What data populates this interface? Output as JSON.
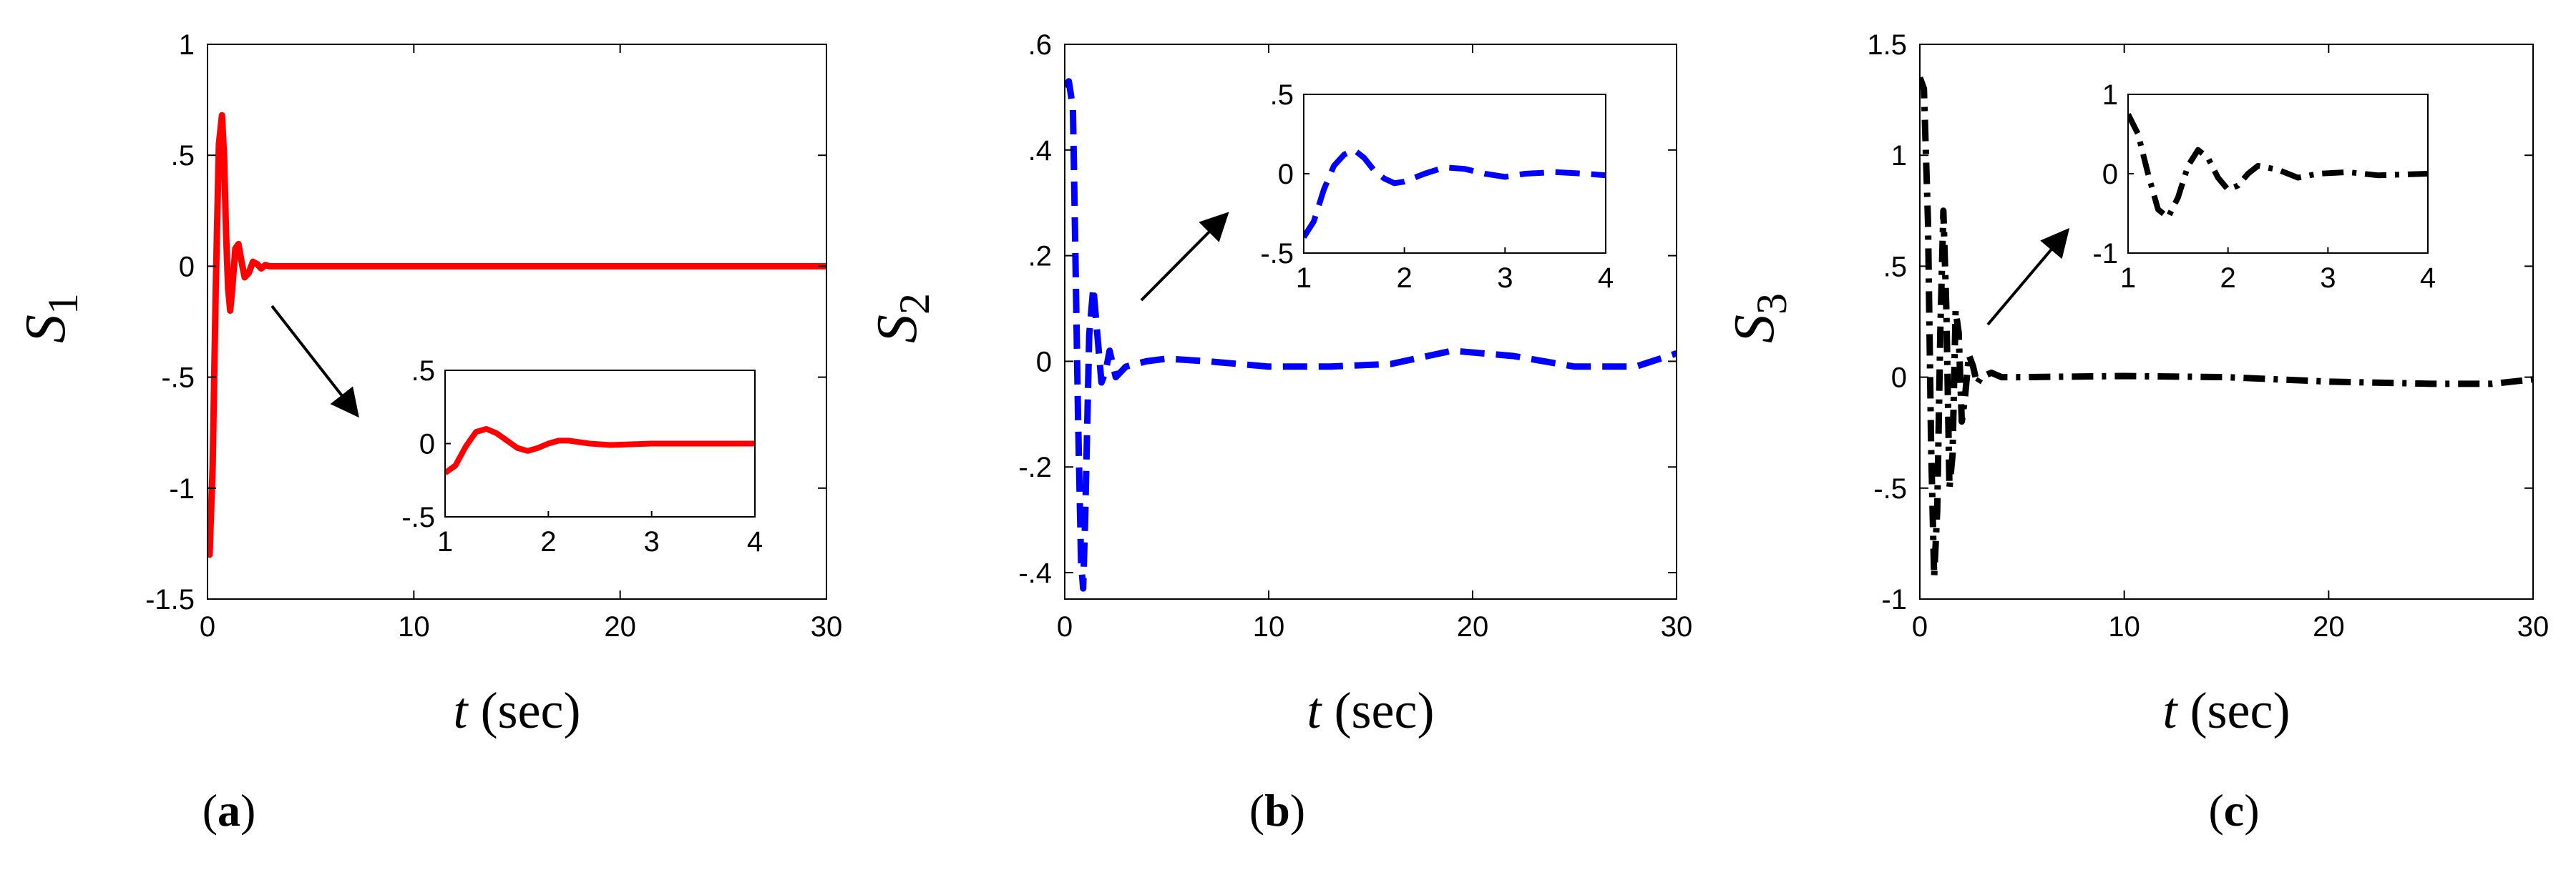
{
  "chart_data": [
    {
      "type": "line",
      "panel_label": "a",
      "ylabel": "S",
      "ylabel_subscript": "1",
      "xlabel_var": "t",
      "xlabel_unit": "(sec)",
      "xlim": [
        0,
        30
      ],
      "ylim": [
        -1.5,
        1
      ],
      "xticks": [
        0,
        10,
        20,
        30
      ],
      "yticks": [
        -1.5,
        -1,
        -0.5,
        0,
        0.5,
        1
      ],
      "grid": false,
      "color": "#ff0000",
      "line_style": "solid",
      "series": [
        {
          "x": [
            0,
            0.1,
            0.25,
            0.4,
            0.55,
            0.7,
            0.8,
            0.9,
            1.0,
            1.1,
            1.2,
            1.35,
            1.5,
            1.65,
            1.8,
            2.0,
            2.2,
            2.4,
            2.6,
            2.8,
            3.0,
            3.5,
            4.0,
            5,
            10,
            15,
            20,
            25,
            30
          ],
          "y": [
            -1.25,
            -1.3,
            -0.9,
            -0.1,
            0.55,
            0.68,
            0.5,
            0.15,
            -0.1,
            -0.2,
            -0.1,
            0.08,
            0.1,
            0.02,
            -0.05,
            -0.03,
            0.02,
            0.01,
            -0.01,
            0.005,
            0,
            0,
            0,
            0,
            0,
            0,
            0,
            0,
            0
          ]
        }
      ],
      "inset": {
        "xlim": [
          1,
          4
        ],
        "ylim": [
          -0.5,
          0.5
        ],
        "xticks": [
          1,
          2,
          3,
          4
        ],
        "yticks": [
          -0.5,
          0,
          0.5
        ],
        "x": [
          1.0,
          1.1,
          1.2,
          1.3,
          1.4,
          1.5,
          1.6,
          1.7,
          1.8,
          1.9,
          2.0,
          2.1,
          2.2,
          2.3,
          2.4,
          2.6,
          2.8,
          3.0,
          3.5,
          4.0
        ],
        "y": [
          -0.2,
          -0.15,
          -0.02,
          0.08,
          0.1,
          0.07,
          0.02,
          -0.03,
          -0.05,
          -0.03,
          0.0,
          0.02,
          0.02,
          0.01,
          0.0,
          -0.01,
          -0.005,
          0,
          0,
          0
        ]
      }
    },
    {
      "type": "line",
      "panel_label": "b",
      "ylabel": "S",
      "ylabel_subscript": "2",
      "xlabel_var": "t",
      "xlabel_unit": "(sec)",
      "xlim": [
        0,
        30
      ],
      "ylim": [
        -0.45,
        0.6
      ],
      "xticks": [
        0,
        10,
        20,
        30
      ],
      "yticks": [
        -0.4,
        -0.2,
        0,
        0.2,
        0.4,
        0.6
      ],
      "grid": false,
      "color": "#0000ff",
      "line_style": "dashed",
      "series": [
        {
          "x": [
            0,
            0.2,
            0.4,
            0.5,
            0.65,
            0.8,
            0.9,
            1.0,
            1.2,
            1.4,
            1.6,
            1.8,
            2.0,
            2.2,
            2.5,
            3.0,
            4.0,
            5.0,
            7,
            10,
            13,
            16,
            19,
            22,
            25,
            28,
            30
          ],
          "y": [
            0.52,
            0.53,
            0.48,
            0.25,
            -0.1,
            -0.38,
            -0.43,
            -0.3,
            0.05,
            0.14,
            0.05,
            -0.04,
            -0.02,
            0.02,
            -0.03,
            -0.01,
            0.0,
            0.005,
            0,
            -0.01,
            -0.01,
            -0.005,
            0.02,
            0.01,
            -0.01,
            -0.01,
            0.015
          ]
        }
      ],
      "inset": {
        "xlim": [
          1,
          4
        ],
        "ylim": [
          -0.5,
          0.5
        ],
        "xticks": [
          1,
          2,
          3,
          4
        ],
        "yticks": [
          -0.5,
          0,
          0.5
        ],
        "x": [
          1.0,
          1.1,
          1.2,
          1.3,
          1.4,
          1.5,
          1.6,
          1.7,
          1.8,
          1.9,
          2.0,
          2.2,
          2.4,
          2.6,
          2.8,
          3.0,
          3.2,
          3.5,
          3.8,
          4.0
        ],
        "y": [
          -0.4,
          -0.3,
          -0.1,
          0.05,
          0.12,
          0.15,
          0.1,
          0.02,
          -0.03,
          -0.06,
          -0.05,
          0.0,
          0.04,
          0.03,
          0.0,
          -0.02,
          0.0,
          0.01,
          0.0,
          -0.01
        ]
      }
    },
    {
      "type": "line",
      "panel_label": "c",
      "ylabel": "S",
      "ylabel_subscript": "3",
      "xlabel_var": "t",
      "xlabel_unit": "(sec)",
      "xlim": [
        0,
        30
      ],
      "ylim": [
        -1,
        1.5
      ],
      "xticks": [
        0,
        10,
        20,
        30
      ],
      "yticks": [
        -1,
        -0.5,
        0,
        0.5,
        1,
        1.5
      ],
      "grid": false,
      "color": "#000000",
      "line_style": "dashdot",
      "series": [
        {
          "x": [
            0,
            0.2,
            0.4,
            0.55,
            0.7,
            0.85,
            1.0,
            1.15,
            1.3,
            1.45,
            1.6,
            1.75,
            1.9,
            2.05,
            2.2,
            2.4,
            2.6,
            2.8,
            3.0,
            3.5,
            4.0,
            5,
            10,
            15,
            20,
            25,
            28,
            30
          ],
          "y": [
            1.35,
            1.3,
            0.7,
            -0.3,
            -0.9,
            -0.6,
            0.2,
            0.75,
            0.3,
            -0.5,
            -0.35,
            0.3,
            0.2,
            -0.2,
            -0.1,
            0.1,
            0.05,
            -0.03,
            0.0,
            0.02,
            0.0,
            0.0,
            0.005,
            0.0,
            -0.02,
            -0.03,
            -0.03,
            -0.01
          ]
        }
      ],
      "inset": {
        "xlim": [
          1,
          4
        ],
        "ylim": [
          -1,
          1
        ],
        "xticks": [
          1,
          2,
          3,
          4
        ],
        "yticks": [
          -1,
          0,
          1
        ],
        "x": [
          1.0,
          1.1,
          1.2,
          1.3,
          1.4,
          1.5,
          1.6,
          1.7,
          1.8,
          1.9,
          2.0,
          2.1,
          2.2,
          2.3,
          2.5,
          2.7,
          2.9,
          3.2,
          3.5,
          4.0
        ],
        "y": [
          0.75,
          0.5,
          0.0,
          -0.45,
          -0.55,
          -0.3,
          0.1,
          0.3,
          0.2,
          -0.05,
          -0.2,
          -0.15,
          0.0,
          0.1,
          0.05,
          -0.05,
          0.0,
          0.02,
          -0.02,
          0.0
        ]
      }
    }
  ]
}
